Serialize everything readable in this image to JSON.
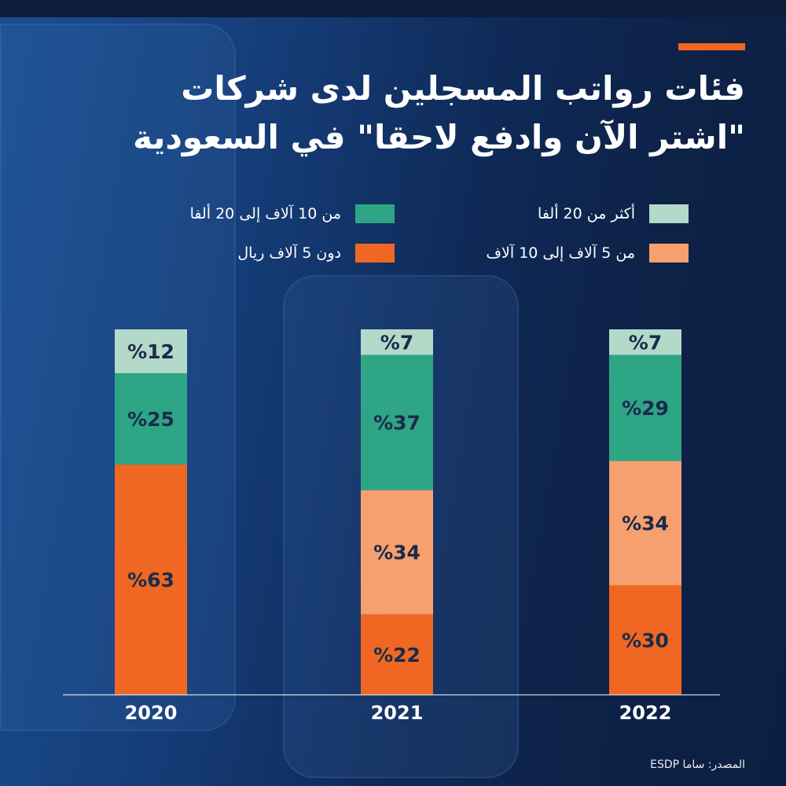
{
  "title_lines": [
    "فئات رواتب المسجلين لدى شركات",
    "\"اشتر الآن وادفع لاحقا\" في السعودية"
  ],
  "source": "المصدر: ساما ESDP",
  "colors": {
    "background": "#0e2247",
    "accent": "#ef6722",
    "label_text": "#1b2a4a"
  },
  "legend": [
    {
      "label": "أكثر من 20 ألفا",
      "color": "#b3d9c9"
    },
    {
      "label": "من 10 آلاف إلى 20 ألفا",
      "color": "#2ea585"
    },
    {
      "label": "من 5 آلاف إلى 10 آلاف",
      "color": "#f6a06f"
    },
    {
      "label": "دون 5 آلاف ريال",
      "color": "#ef6722"
    }
  ],
  "chart_data": {
    "type": "bar",
    "stacked": true,
    "orientation": "vertical",
    "categories": [
      "2020",
      "2021",
      "2022"
    ],
    "series": [
      {
        "name": "دون 5 آلاف ريال",
        "color": "#ef6722",
        "values": [
          63,
          22,
          30
        ]
      },
      {
        "name": "من 5 آلاف إلى 10 آلاف",
        "color": "#f6a06f",
        "values": [
          0,
          34,
          34
        ]
      },
      {
        "name": "من 10 آلاف إلى 20 ألفا",
        "color": "#2ea585",
        "values": [
          25,
          37,
          29
        ]
      },
      {
        "name": "أكثر من 20 ألفا",
        "color": "#b3d9c9",
        "values": [
          12,
          7,
          7
        ]
      }
    ],
    "value_label_format": "%{value}",
    "ylim": [
      0,
      100
    ],
    "grid": false,
    "legend_position": "top"
  }
}
